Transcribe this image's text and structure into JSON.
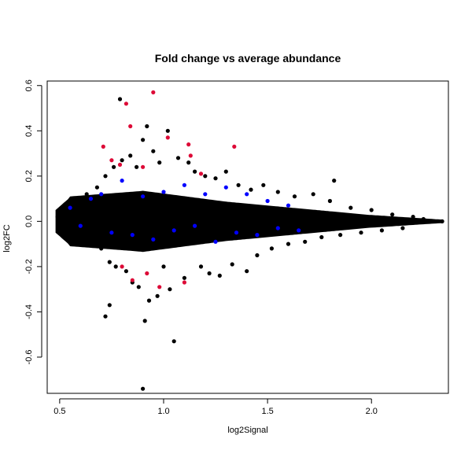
{
  "chart_data": {
    "type": "scatter",
    "title": "Fold change vs average abundance",
    "xlabel": "log2Signal",
    "ylabel": "log2FC",
    "xlim": [
      0.44,
      2.37
    ],
    "ylim": [
      -0.76,
      0.62
    ],
    "x_ticks": [
      0.5,
      1.0,
      1.5,
      2.0
    ],
    "x_tick_labels": [
      "0.5",
      "1.0",
      "1.5",
      "2.0"
    ],
    "y_ticks": [
      -0.6,
      -0.4,
      -0.2,
      0.0,
      0.2,
      0.4,
      0.6
    ],
    "y_tick_labels": [
      "-0.6",
      "-0.4",
      "-0.2",
      "0.0",
      "0.2",
      "0.4",
      "0.6"
    ],
    "grid": false,
    "legend": "none",
    "colors": {
      "background_points": "#000000",
      "blue_points": "#0000ff",
      "red_points": "#dd0a37"
    },
    "series": [
      {
        "color": "#000000",
        "points": [
          [
            0.49,
            0.02
          ],
          [
            0.5,
            -0.01
          ],
          [
            0.52,
            0.05
          ],
          [
            0.55,
            -0.04
          ],
          [
            0.58,
            0.08
          ],
          [
            0.6,
            -0.06
          ],
          [
            0.63,
            0.12
          ],
          [
            0.65,
            -0.1
          ],
          [
            0.68,
            0.15
          ],
          [
            0.7,
            -0.12
          ],
          [
            0.72,
            0.2
          ],
          [
            0.74,
            -0.18
          ],
          [
            0.76,
            0.24
          ],
          [
            0.77,
            -0.2
          ],
          [
            0.79,
            0.54
          ],
          [
            0.8,
            0.27
          ],
          [
            0.82,
            -0.22
          ],
          [
            0.84,
            0.29
          ],
          [
            0.85,
            -0.27
          ],
          [
            0.87,
            0.24
          ],
          [
            0.88,
            -0.29
          ],
          [
            0.9,
            0.36
          ],
          [
            0.91,
            -0.44
          ],
          [
            0.92,
            0.42
          ],
          [
            0.93,
            -0.35
          ],
          [
            0.95,
            0.31
          ],
          [
            0.97,
            -0.33
          ],
          [
            0.98,
            0.26
          ],
          [
            1.0,
            -0.2
          ],
          [
            1.02,
            0.4
          ],
          [
            1.03,
            -0.3
          ],
          [
            1.05,
            -0.53
          ],
          [
            1.07,
            0.28
          ],
          [
            1.1,
            -0.25
          ],
          [
            1.12,
            0.26
          ],
          [
            1.15,
            0.22
          ],
          [
            1.18,
            -0.2
          ],
          [
            1.2,
            0.2
          ],
          [
            1.22,
            -0.23
          ],
          [
            1.25,
            0.19
          ],
          [
            1.27,
            -0.24
          ],
          [
            1.3,
            0.22
          ],
          [
            1.33,
            -0.19
          ],
          [
            1.36,
            0.16
          ],
          [
            1.4,
            -0.22
          ],
          [
            1.42,
            0.14
          ],
          [
            1.45,
            -0.15
          ],
          [
            1.48,
            0.16
          ],
          [
            1.52,
            -0.12
          ],
          [
            1.55,
            0.13
          ],
          [
            1.6,
            -0.1
          ],
          [
            1.63,
            0.11
          ],
          [
            1.68,
            -0.09
          ],
          [
            1.72,
            0.12
          ],
          [
            1.76,
            -0.07
          ],
          [
            1.8,
            0.09
          ],
          [
            1.82,
            0.18
          ],
          [
            1.85,
            -0.06
          ],
          [
            1.9,
            0.06
          ],
          [
            1.95,
            -0.05
          ],
          [
            2.0,
            0.05
          ],
          [
            2.05,
            -0.04
          ],
          [
            2.1,
            0.03
          ],
          [
            2.15,
            -0.03
          ],
          [
            2.2,
            0.02
          ],
          [
            2.25,
            0.01
          ],
          [
            2.3,
            0.0
          ],
          [
            2.34,
            0.0
          ],
          [
            0.72,
            -0.42
          ],
          [
            0.74,
            -0.37
          ],
          [
            0.9,
            -0.74
          ]
        ]
      },
      {
        "color": "#0000ff",
        "points": [
          [
            0.55,
            0.06
          ],
          [
            0.6,
            -0.02
          ],
          [
            0.65,
            0.1
          ],
          [
            0.7,
            0.12
          ],
          [
            0.75,
            -0.05
          ],
          [
            0.8,
            0.18
          ],
          [
            0.85,
            -0.06
          ],
          [
            0.9,
            0.11
          ],
          [
            0.95,
            -0.08
          ],
          [
            1.0,
            0.13
          ],
          [
            1.05,
            -0.04
          ],
          [
            1.1,
            0.16
          ],
          [
            1.15,
            -0.02
          ],
          [
            1.2,
            0.12
          ],
          [
            1.25,
            -0.09
          ],
          [
            1.3,
            0.15
          ],
          [
            1.35,
            -0.05
          ],
          [
            1.4,
            0.12
          ],
          [
            1.45,
            -0.06
          ],
          [
            1.5,
            0.09
          ],
          [
            1.55,
            -0.03
          ],
          [
            1.6,
            0.07
          ],
          [
            1.65,
            -0.04
          ]
        ]
      },
      {
        "color": "#dd0a37",
        "points": [
          [
            0.71,
            0.33
          ],
          [
            0.75,
            0.27
          ],
          [
            0.79,
            0.25
          ],
          [
            0.82,
            0.52
          ],
          [
            0.84,
            0.42
          ],
          [
            0.9,
            0.24
          ],
          [
            0.95,
            0.57
          ],
          [
            1.02,
            0.37
          ],
          [
            1.12,
            0.34
          ],
          [
            1.13,
            0.29
          ],
          [
            1.18,
            0.21
          ],
          [
            1.34,
            0.33
          ],
          [
            0.8,
            -0.2
          ],
          [
            0.85,
            -0.26
          ],
          [
            0.92,
            -0.23
          ],
          [
            0.98,
            -0.29
          ],
          [
            1.1,
            -0.27
          ]
        ]
      }
    ]
  }
}
